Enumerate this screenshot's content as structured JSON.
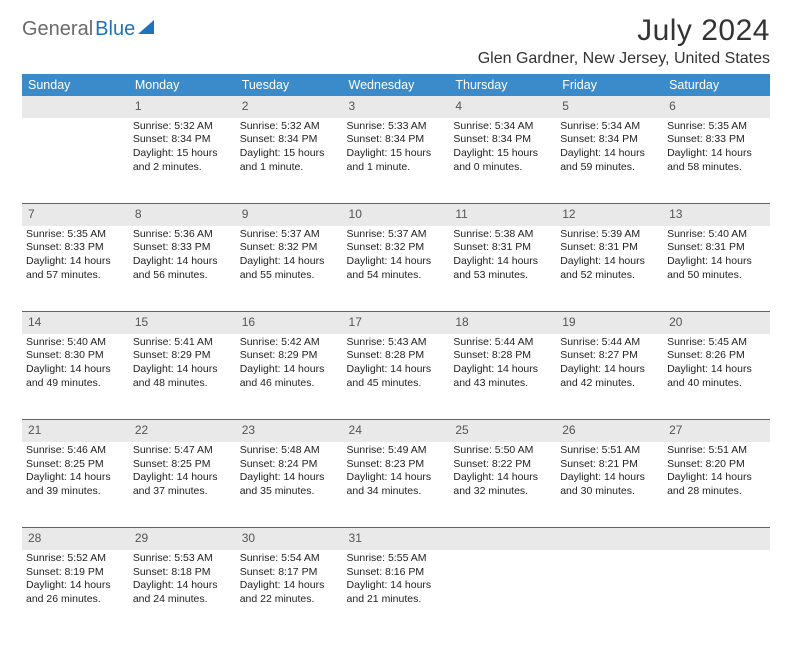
{
  "logo": {
    "text1": "General",
    "text2": "Blue"
  },
  "title": "July 2024",
  "location": "Glen Gardner, New Jersey, United States",
  "colors": {
    "header_bg": "#3b8bca",
    "header_text": "#ffffff",
    "daynum_bg": "#e9e9e9",
    "row_divider": "#2f6fa6",
    "logo_accent": "#1f74b9",
    "logo_gray": "#6a6a6a",
    "body_text": "#222222"
  },
  "typography": {
    "title_fontsize": 30,
    "location_fontsize": 16,
    "header_fontsize": 12.5,
    "cell_fontsize": 10.5,
    "daynum_fontsize": 12
  },
  "weekdays": [
    "Sunday",
    "Monday",
    "Tuesday",
    "Wednesday",
    "Thursday",
    "Friday",
    "Saturday"
  ],
  "weeks": [
    [
      {
        "num": "",
        "lines": []
      },
      {
        "num": "1",
        "lines": [
          "Sunrise: 5:32 AM",
          "Sunset: 8:34 PM",
          "Daylight: 15 hours",
          "and 2 minutes."
        ]
      },
      {
        "num": "2",
        "lines": [
          "Sunrise: 5:32 AM",
          "Sunset: 8:34 PM",
          "Daylight: 15 hours",
          "and 1 minute."
        ]
      },
      {
        "num": "3",
        "lines": [
          "Sunrise: 5:33 AM",
          "Sunset: 8:34 PM",
          "Daylight: 15 hours",
          "and 1 minute."
        ]
      },
      {
        "num": "4",
        "lines": [
          "Sunrise: 5:34 AM",
          "Sunset: 8:34 PM",
          "Daylight: 15 hours",
          "and 0 minutes."
        ]
      },
      {
        "num": "5",
        "lines": [
          "Sunrise: 5:34 AM",
          "Sunset: 8:34 PM",
          "Daylight: 14 hours",
          "and 59 minutes."
        ]
      },
      {
        "num": "6",
        "lines": [
          "Sunrise: 5:35 AM",
          "Sunset: 8:33 PM",
          "Daylight: 14 hours",
          "and 58 minutes."
        ]
      }
    ],
    [
      {
        "num": "7",
        "lines": [
          "Sunrise: 5:35 AM",
          "Sunset: 8:33 PM",
          "Daylight: 14 hours",
          "and 57 minutes."
        ]
      },
      {
        "num": "8",
        "lines": [
          "Sunrise: 5:36 AM",
          "Sunset: 8:33 PM",
          "Daylight: 14 hours",
          "and 56 minutes."
        ]
      },
      {
        "num": "9",
        "lines": [
          "Sunrise: 5:37 AM",
          "Sunset: 8:32 PM",
          "Daylight: 14 hours",
          "and 55 minutes."
        ]
      },
      {
        "num": "10",
        "lines": [
          "Sunrise: 5:37 AM",
          "Sunset: 8:32 PM",
          "Daylight: 14 hours",
          "and 54 minutes."
        ]
      },
      {
        "num": "11",
        "lines": [
          "Sunrise: 5:38 AM",
          "Sunset: 8:31 PM",
          "Daylight: 14 hours",
          "and 53 minutes."
        ]
      },
      {
        "num": "12",
        "lines": [
          "Sunrise: 5:39 AM",
          "Sunset: 8:31 PM",
          "Daylight: 14 hours",
          "and 52 minutes."
        ]
      },
      {
        "num": "13",
        "lines": [
          "Sunrise: 5:40 AM",
          "Sunset: 8:31 PM",
          "Daylight: 14 hours",
          "and 50 minutes."
        ]
      }
    ],
    [
      {
        "num": "14",
        "lines": [
          "Sunrise: 5:40 AM",
          "Sunset: 8:30 PM",
          "Daylight: 14 hours",
          "and 49 minutes."
        ]
      },
      {
        "num": "15",
        "lines": [
          "Sunrise: 5:41 AM",
          "Sunset: 8:29 PM",
          "Daylight: 14 hours",
          "and 48 minutes."
        ]
      },
      {
        "num": "16",
        "lines": [
          "Sunrise: 5:42 AM",
          "Sunset: 8:29 PM",
          "Daylight: 14 hours",
          "and 46 minutes."
        ]
      },
      {
        "num": "17",
        "lines": [
          "Sunrise: 5:43 AM",
          "Sunset: 8:28 PM",
          "Daylight: 14 hours",
          "and 45 minutes."
        ]
      },
      {
        "num": "18",
        "lines": [
          "Sunrise: 5:44 AM",
          "Sunset: 8:28 PM",
          "Daylight: 14 hours",
          "and 43 minutes."
        ]
      },
      {
        "num": "19",
        "lines": [
          "Sunrise: 5:44 AM",
          "Sunset: 8:27 PM",
          "Daylight: 14 hours",
          "and 42 minutes."
        ]
      },
      {
        "num": "20",
        "lines": [
          "Sunrise: 5:45 AM",
          "Sunset: 8:26 PM",
          "Daylight: 14 hours",
          "and 40 minutes."
        ]
      }
    ],
    [
      {
        "num": "21",
        "lines": [
          "Sunrise: 5:46 AM",
          "Sunset: 8:25 PM",
          "Daylight: 14 hours",
          "and 39 minutes."
        ]
      },
      {
        "num": "22",
        "lines": [
          "Sunrise: 5:47 AM",
          "Sunset: 8:25 PM",
          "Daylight: 14 hours",
          "and 37 minutes."
        ]
      },
      {
        "num": "23",
        "lines": [
          "Sunrise: 5:48 AM",
          "Sunset: 8:24 PM",
          "Daylight: 14 hours",
          "and 35 minutes."
        ]
      },
      {
        "num": "24",
        "lines": [
          "Sunrise: 5:49 AM",
          "Sunset: 8:23 PM",
          "Daylight: 14 hours",
          "and 34 minutes."
        ]
      },
      {
        "num": "25",
        "lines": [
          "Sunrise: 5:50 AM",
          "Sunset: 8:22 PM",
          "Daylight: 14 hours",
          "and 32 minutes."
        ]
      },
      {
        "num": "26",
        "lines": [
          "Sunrise: 5:51 AM",
          "Sunset: 8:21 PM",
          "Daylight: 14 hours",
          "and 30 minutes."
        ]
      },
      {
        "num": "27",
        "lines": [
          "Sunrise: 5:51 AM",
          "Sunset: 8:20 PM",
          "Daylight: 14 hours",
          "and 28 minutes."
        ]
      }
    ],
    [
      {
        "num": "28",
        "lines": [
          "Sunrise: 5:52 AM",
          "Sunset: 8:19 PM",
          "Daylight: 14 hours",
          "and 26 minutes."
        ]
      },
      {
        "num": "29",
        "lines": [
          "Sunrise: 5:53 AM",
          "Sunset: 8:18 PM",
          "Daylight: 14 hours",
          "and 24 minutes."
        ]
      },
      {
        "num": "30",
        "lines": [
          "Sunrise: 5:54 AM",
          "Sunset: 8:17 PM",
          "Daylight: 14 hours",
          "and 22 minutes."
        ]
      },
      {
        "num": "31",
        "lines": [
          "Sunrise: 5:55 AM",
          "Sunset: 8:16 PM",
          "Daylight: 14 hours",
          "and 21 minutes."
        ]
      },
      {
        "num": "",
        "lines": []
      },
      {
        "num": "",
        "lines": []
      },
      {
        "num": "",
        "lines": []
      }
    ]
  ]
}
